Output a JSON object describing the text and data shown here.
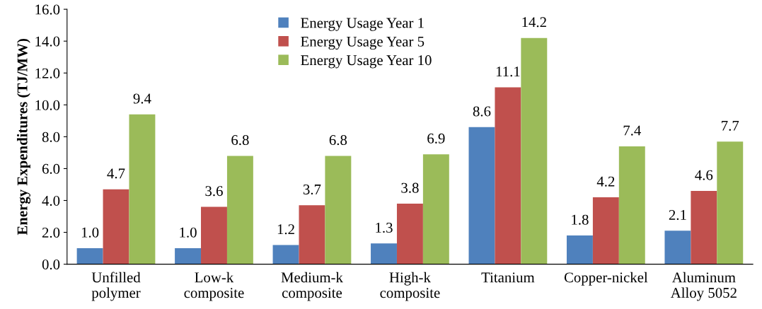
{
  "chart_data": {
    "type": "bar",
    "ylabel": "Energy Expenditures (TJ/MW)",
    "categories": [
      "Unfilled\npolymer",
      "Low-k\ncomposite",
      "Medium-k\ncomposite",
      "High-k\ncomposite",
      "Titanium",
      "Copper-nickel",
      "Aluminum\nAlloy 5052"
    ],
    "series": [
      {
        "name": "Energy Usage Year 1",
        "color": "#4f81bd",
        "values": [
          1.0,
          1.0,
          1.2,
          1.3,
          8.6,
          1.8,
          2.1
        ],
        "value_labels": [
          "1.0",
          "1.0",
          "1.2",
          "1.3",
          "8.6",
          "1.8",
          "2.1"
        ]
      },
      {
        "name": "Energy Usage Year 5",
        "color": "#c0504d",
        "values": [
          4.7,
          3.6,
          3.7,
          3.8,
          11.1,
          4.2,
          4.6
        ],
        "value_labels": [
          "4.7",
          "3.6",
          "3.7",
          "3.8",
          "11.1",
          "4.2",
          "4.6"
        ]
      },
      {
        "name": "Energy Usage Year 10",
        "color": "#9bbb59",
        "values": [
          9.4,
          6.8,
          6.8,
          6.9,
          14.2,
          7.4,
          7.7
        ],
        "value_labels": [
          "9.4",
          "6.8",
          "6.8",
          "6.9",
          "14.2",
          "7.4",
          "7.7"
        ]
      }
    ],
    "ylim": [
      0,
      16
    ],
    "yticks": [
      {
        "value": 0,
        "label": "0.0"
      },
      {
        "value": 2,
        "label": "2.0"
      },
      {
        "value": 4,
        "label": "4.0"
      },
      {
        "value": 6,
        "label": "6.0"
      },
      {
        "value": 8,
        "label": "8.0"
      },
      {
        "value": 10,
        "label": "10.0"
      },
      {
        "value": 12,
        "label": "12.0"
      },
      {
        "value": 14,
        "label": "14.0"
      },
      {
        "value": 16,
        "label": "16.0"
      }
    ],
    "grid": false,
    "legend": "top"
  }
}
